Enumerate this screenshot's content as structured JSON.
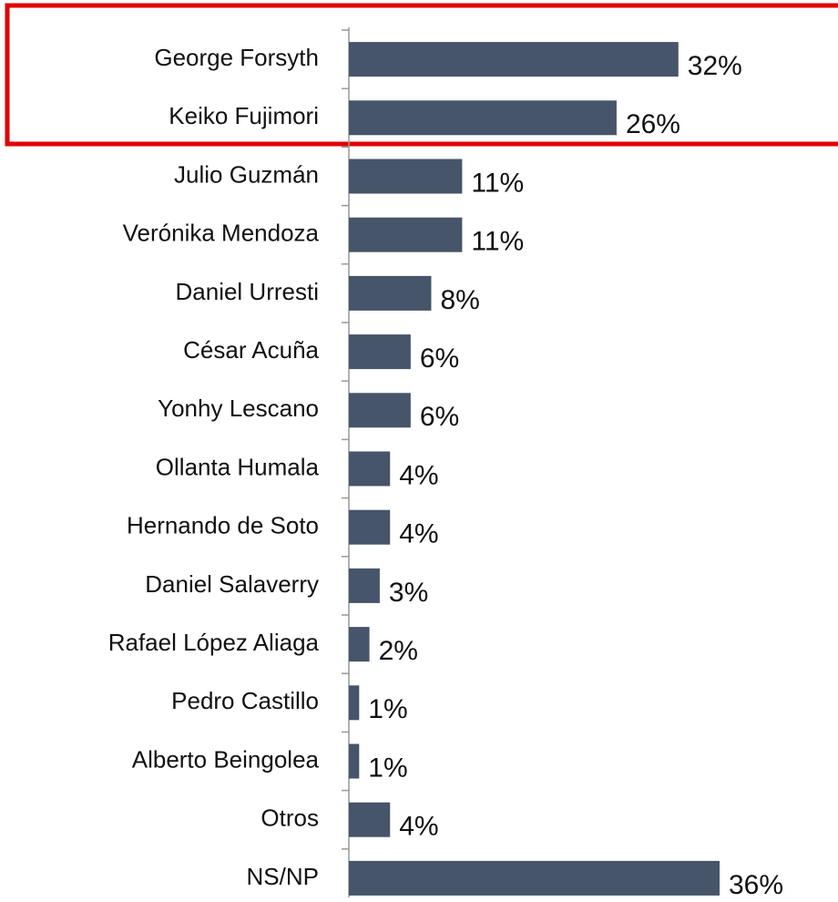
{
  "chart_data": {
    "type": "bar",
    "orientation": "horizontal",
    "categories": [
      "George Forsyth",
      "Keiko Fujimori",
      "Julio Guzmán",
      "Verónika Mendoza",
      "Daniel Urresti",
      "César Acuña",
      "Yonhy Lescano",
      "Ollanta Humala",
      "Hernando de Soto",
      "Daniel Salaverry",
      "Rafael López Aliaga",
      "Pedro Castillo",
      "Alberto Beingolea",
      "Otros",
      "NS/NP"
    ],
    "values": [
      32,
      26,
      11,
      11,
      8,
      6,
      6,
      4,
      4,
      3,
      2,
      1,
      1,
      4,
      36
    ],
    "value_labels": [
      "32%",
      "26%",
      "11%",
      "11%",
      "8%",
      "6%",
      "6%",
      "4%",
      "4%",
      "3%",
      "2%",
      "1%",
      "1%",
      "4%",
      "36%"
    ],
    "color": "#465569"
  }
}
